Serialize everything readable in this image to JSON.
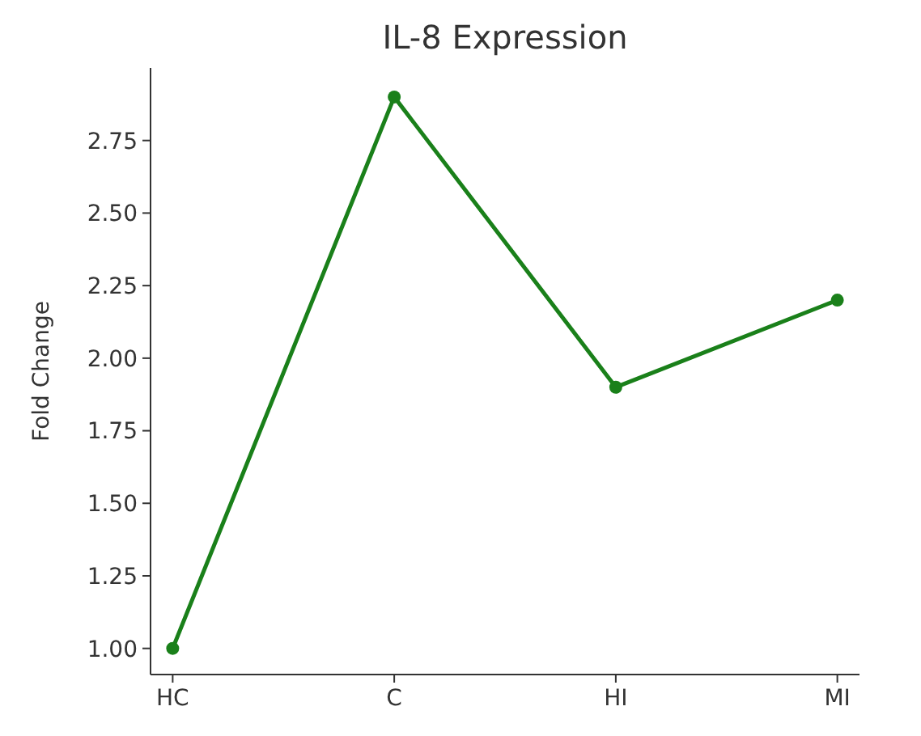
{
  "chart_data": {
    "type": "line",
    "title": "IL-8 Expression",
    "ylabel": "Fold Change",
    "categories": [
      "HC",
      "C",
      "HI",
      "MI"
    ],
    "series": [
      {
        "color": "#1a801a",
        "values": [
          1.0,
          2.9,
          1.9,
          2.2
        ]
      }
    ],
    "ylim": [
      0.91,
      3.0
    ],
    "yticks": [
      {
        "value": 1,
        "label": "1.00"
      },
      {
        "value": 1.25,
        "label": "1.25"
      },
      {
        "value": 1.5,
        "label": "1.50"
      },
      {
        "value": 1.75,
        "label": "1.75"
      },
      {
        "value": 2,
        "label": "2.00"
      },
      {
        "value": 2.25,
        "label": "2.25"
      },
      {
        "value": 2.5,
        "label": "2.50"
      },
      {
        "value": 2.75,
        "label": "2.75"
      }
    ],
    "marker": "circle",
    "line_style": "solid",
    "grid": false
  }
}
